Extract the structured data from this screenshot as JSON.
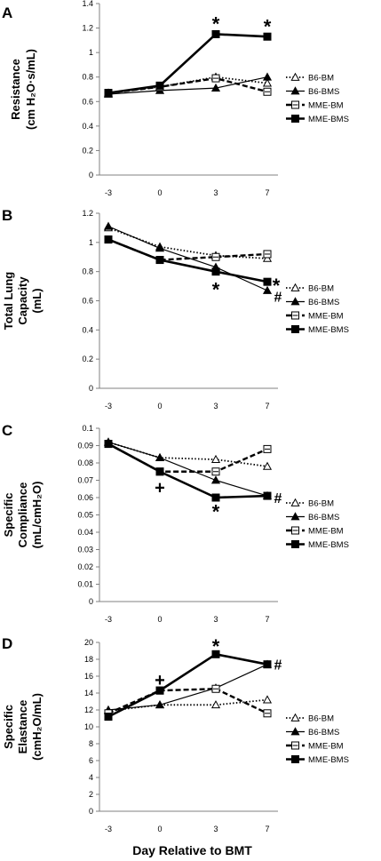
{
  "chart_data": [
    {
      "type": "line",
      "panel_label": "A",
      "ylabel_lines": [
        "Resistance",
        "(cm H₂O·s/mL)"
      ],
      "categories": [
        "-3",
        "0",
        "3",
        "7"
      ],
      "ylim": [
        0,
        1.4
      ],
      "yticks": [
        "0",
        "0.2",
        "0.4",
        "0.6",
        "0.8",
        "1",
        "1.2",
        "1.4"
      ],
      "series": [
        {
          "name": "B6-BM",
          "values": [
            0.67,
            0.72,
            0.8,
            0.75
          ]
        },
        {
          "name": "B6-BMS",
          "values": [
            0.66,
            0.69,
            0.71,
            0.8
          ]
        },
        {
          "name": "MME-BM",
          "values": [
            0.67,
            0.72,
            0.79,
            0.68
          ]
        },
        {
          "name": "MME-BMS",
          "values": [
            0.67,
            0.73,
            1.15,
            1.13
          ]
        }
      ],
      "annotations": [
        {
          "text": "*",
          "x": "3",
          "y": 1.25
        },
        {
          "text": "*",
          "x": "7",
          "y": 1.23
        }
      ],
      "legend": "right"
    },
    {
      "type": "line",
      "panel_label": "B",
      "ylabel_lines": [
        "Total Lung",
        "Capacity",
        "(mL)"
      ],
      "categories": [
        "-3",
        "0",
        "3",
        "7"
      ],
      "ylim": [
        0,
        1.2
      ],
      "yticks": [
        "0",
        "0.2",
        "0.4",
        "0.6",
        "0.8",
        "1",
        "1.2"
      ],
      "series": [
        {
          "name": "B6-BM",
          "values": [
            1.1,
            0.97,
            0.91,
            0.89
          ]
        },
        {
          "name": "B6-BMS",
          "values": [
            1.11,
            0.96,
            0.83,
            0.67
          ]
        },
        {
          "name": "MME-BM",
          "values": [
            1.02,
            0.88,
            0.9,
            0.92
          ]
        },
        {
          "name": "MME-BMS",
          "values": [
            1.02,
            0.88,
            0.8,
            0.73
          ]
        }
      ],
      "annotations": [
        {
          "text": "*",
          "x": "3",
          "y": 0.69
        },
        {
          "text": "*",
          "x": "7",
          "y": 0.72
        },
        {
          "text": "#",
          "x": "7",
          "y": 0.63
        }
      ],
      "legend": "right"
    },
    {
      "type": "line",
      "panel_label": "C",
      "ylabel_lines": [
        "Specific",
        "Compliance",
        "(mL/cmH₂O)"
      ],
      "categories": [
        "-3",
        "0",
        "3",
        "7"
      ],
      "ylim": [
        0,
        0.1
      ],
      "yticks": [
        "0",
        "0.01",
        "0.02",
        "0.03",
        "0.04",
        "0.05",
        "0.06",
        "0.07",
        "0.08",
        "0.09",
        "0.1"
      ],
      "series": [
        {
          "name": "B6-BM",
          "values": [
            0.092,
            0.083,
            0.082,
            0.078
          ]
        },
        {
          "name": "B6-BMS",
          "values": [
            0.092,
            0.083,
            0.07,
            0.061
          ]
        },
        {
          "name": "MME-BM",
          "values": [
            0.091,
            0.075,
            0.075,
            0.088
          ]
        },
        {
          "name": "MME-BMS",
          "values": [
            0.091,
            0.075,
            0.06,
            0.061
          ]
        }
      ],
      "annotations": [
        {
          "text": "+",
          "x": "0",
          "y": 0.066
        },
        {
          "text": "*",
          "x": "3",
          "y": 0.053
        },
        {
          "text": "#",
          "x": "7",
          "y": 0.06
        }
      ],
      "legend": "right"
    },
    {
      "type": "line",
      "panel_label": "D",
      "ylabel_lines": [
        "Specific",
        "Elastance",
        "(cmH₂O/mL)"
      ],
      "categories": [
        "-3",
        "0",
        "3",
        "7"
      ],
      "ylim": [
        0,
        20
      ],
      "yticks": [
        "0",
        "2",
        "4",
        "6",
        "8",
        "10",
        "12",
        "14",
        "16",
        "18",
        "20"
      ],
      "series": [
        {
          "name": "B6-BM",
          "values": [
            11.9,
            12.6,
            12.6,
            13.2
          ]
        },
        {
          "name": "B6-BMS",
          "values": [
            12.0,
            12.6,
            14.6,
            17.4
          ]
        },
        {
          "name": "MME-BM",
          "values": [
            11.6,
            14.3,
            14.5,
            11.6
          ]
        },
        {
          "name": "MME-BMS",
          "values": [
            11.2,
            14.3,
            18.6,
            17.4
          ]
        }
      ],
      "annotations": [
        {
          "text": "+",
          "x": "0",
          "y": 15.6
        },
        {
          "text": "*",
          "x": "3",
          "y": 19.8
        },
        {
          "text": "#",
          "x": "7",
          "y": 17.4
        }
      ],
      "legend": "right"
    }
  ],
  "xlabel": "Day Relative to BMT",
  "colors": {
    "line": "#000000",
    "background": "#ffffff"
  }
}
